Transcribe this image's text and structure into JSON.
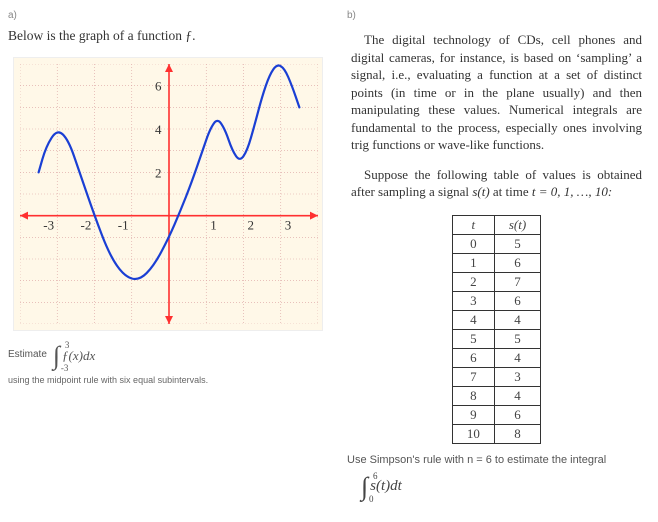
{
  "left": {
    "part_label": "a)",
    "intro": "Below is the graph of a function ƒ.",
    "graph": {
      "background": "#fff8e8",
      "grid_color": "#d9a0a0",
      "axis_color": "#ff3030",
      "curve_color": "#1a3fd4",
      "curve_width": 2.2,
      "xlim": [
        -4,
        4
      ],
      "ylim": [
        -5,
        7
      ],
      "xticks": [
        -3,
        -2,
        -1,
        1,
        2,
        3
      ],
      "yticks": [
        2,
        4,
        6
      ],
      "tick_fontsize": 13,
      "curve_points": [
        [
          -3.5,
          2.0
        ],
        [
          -3.3,
          3.2
        ],
        [
          -3.0,
          4.0
        ],
        [
          -2.7,
          3.5
        ],
        [
          -2.4,
          2.0
        ],
        [
          -2.0,
          0.0
        ],
        [
          -1.6,
          -1.8
        ],
        [
          -1.2,
          -2.8
        ],
        [
          -0.8,
          -3.0
        ],
        [
          -0.4,
          -2.3
        ],
        [
          0.0,
          -1.0
        ],
        [
          0.3,
          0.2
        ],
        [
          0.6,
          1.5
        ],
        [
          0.9,
          3.0
        ],
        [
          1.1,
          4.0
        ],
        [
          1.3,
          4.5
        ],
        [
          1.5,
          4.0
        ],
        [
          1.7,
          3.0
        ],
        [
          1.9,
          2.5
        ],
        [
          2.1,
          3.0
        ],
        [
          2.3,
          4.2
        ],
        [
          2.5,
          5.5
        ],
        [
          2.7,
          6.5
        ],
        [
          2.9,
          7.0
        ],
        [
          3.1,
          6.8
        ],
        [
          3.3,
          6.0
        ],
        [
          3.5,
          5.0
        ]
      ]
    },
    "estimate_label": "Estimate",
    "integral": {
      "lower": "-3",
      "upper": "3",
      "expr": "ƒ(x)dx"
    },
    "footer_note": "using the midpoint rule with six equal subintervals."
  },
  "right": {
    "part_label": "b)",
    "para1": "The digital technology of CDs, cell phones and digital cameras, for instance, is based on ‘sampling’ a signal, i.e., evaluating a function at a set of distinct points (in time or in the plane usually) and then manipulating these values. Numerical integrals are fundamental to the process, especially ones involving trig functions or wave-like functions.",
    "para2_a": "Suppose the following table of values is obtained after sampling a signal ",
    "para2_b": "s(t)",
    "para2_c": " at time ",
    "para2_d": "t = 0, 1, …, 10:",
    "table": {
      "t_header": "t",
      "s_header": "s(t)",
      "rows": [
        {
          "t": "0",
          "s": "5"
        },
        {
          "t": "1",
          "s": "6"
        },
        {
          "t": "2",
          "s": "7"
        },
        {
          "t": "3",
          "s": "6"
        },
        {
          "t": "4",
          "s": "4"
        },
        {
          "t": "5",
          "s": "5"
        },
        {
          "t": "6",
          "s": "4"
        },
        {
          "t": "7",
          "s": "3"
        },
        {
          "t": "8",
          "s": "4"
        },
        {
          "t": "9",
          "s": "6"
        },
        {
          "t": "10",
          "s": "8"
        }
      ]
    },
    "question": "Use Simpson's rule with n = 6 to estimate the integral",
    "integral": {
      "lower": "0",
      "upper": "6",
      "expr": "s(t)dt"
    }
  }
}
